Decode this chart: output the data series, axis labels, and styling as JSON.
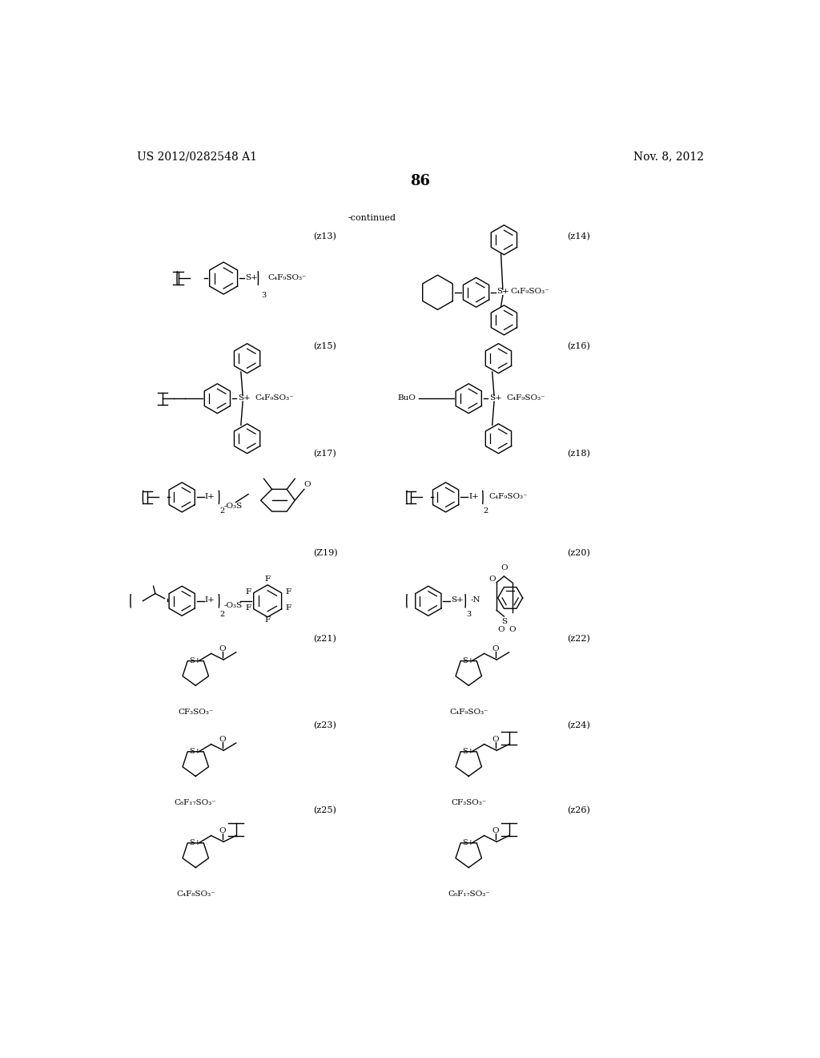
{
  "title_left": "US 2012/0282548 A1",
  "title_right": "Nov. 8, 2012",
  "page_number": "86",
  "continued_text": "-continued",
  "background_color": "#ffffff",
  "text_color": "#000000",
  "font_size_header": 10,
  "font_size_label": 8,
  "font_size_formula": 7.5,
  "font_size_page": 13,
  "labels": [
    "(z13)",
    "(z14)",
    "(z15)",
    "(z16)",
    "(z17)",
    "(z18)",
    "(Z19)",
    "(z20)",
    "(z21)",
    "(z22)",
    "(z23)",
    "(z24)",
    "(z25)",
    "(z26)"
  ]
}
